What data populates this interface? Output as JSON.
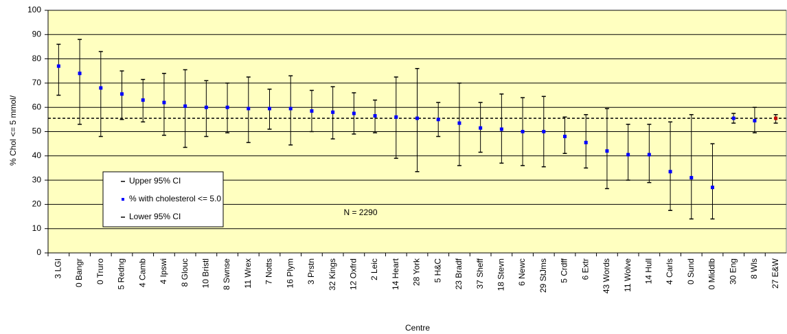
{
  "chart_data": {
    "type": "errorbar",
    "y_label": "% Chol <= 5 mmol/",
    "x_label": "Centre",
    "annotation": "N = 2290",
    "categories": [
      "3 LGI",
      "0 Bangr",
      "0 Truro",
      "5 Redng",
      "4 Camb",
      "4 Ipswi",
      "8 Glouc",
      "10 Bristl",
      "8 Swnse",
      "11 Wrex",
      "7 Notts",
      "16 Plym",
      "3 Prstn",
      "32 Kings",
      "12 Oxfrd",
      "2 Leic",
      "14 Heart",
      "28 York",
      "5 H&C",
      "23 Bradf",
      "37 Sheff",
      "18 Stevn",
      "6 Newc",
      "29 StJms",
      "5 Crdff",
      "6 Extr",
      "43 Words",
      "11 Wolve",
      "14 Hull",
      "4 Carls",
      "0 Sund",
      "0 Middlb",
      "30 Eng",
      "8 Wls",
      "27 E&W"
    ],
    "series": [
      {
        "name": "Upper 95% CI",
        "color": "#000000",
        "values": [
          86,
          88,
          83,
          75,
          71.5,
          74,
          75.5,
          71,
          70,
          72.5,
          67.5,
          73,
          67,
          68.5,
          66,
          63,
          72.5,
          76,
          62,
          70,
          62,
          65.5,
          64,
          64.5,
          56,
          57,
          59.5,
          53,
          53,
          54,
          57,
          45,
          57.5,
          60,
          57
        ]
      },
      {
        "name": "% with cholesterol <= 5.0",
        "color": "#0000ff",
        "values": [
          77,
          74,
          68,
          65.5,
          63,
          62,
          60.5,
          60,
          60,
          59.5,
          59.5,
          59.5,
          58.5,
          58,
          57.5,
          56.5,
          56,
          55.5,
          55,
          53.5,
          51.5,
          51,
          50,
          50,
          48,
          45.5,
          42,
          40.5,
          40.5,
          33.5,
          31,
          27,
          55.5,
          54.5,
          55.5
        ]
      },
      {
        "name": "Lower 95% CI",
        "color": "#000000",
        "values": [
          65,
          53,
          48,
          55,
          54,
          48.5,
          43.5,
          48,
          49.5,
          45.5,
          51,
          44.5,
          50,
          47,
          49,
          49.5,
          39,
          33.5,
          48,
          36,
          41.5,
          37,
          36,
          35.5,
          41,
          35,
          26.5,
          30,
          29,
          17.5,
          14,
          14,
          53.5,
          49.5,
          53.5
        ]
      }
    ],
    "highlight": {
      "category": "27 E&W",
      "color": "#c00000"
    },
    "reference_line": 55.5,
    "ylim": [
      0,
      100
    ],
    "yticks": [
      0,
      10,
      20,
      30,
      40,
      50,
      60,
      70,
      80,
      90,
      100
    ],
    "grid": true,
    "plot_background": "#ffffc0",
    "legend": "lower left"
  }
}
